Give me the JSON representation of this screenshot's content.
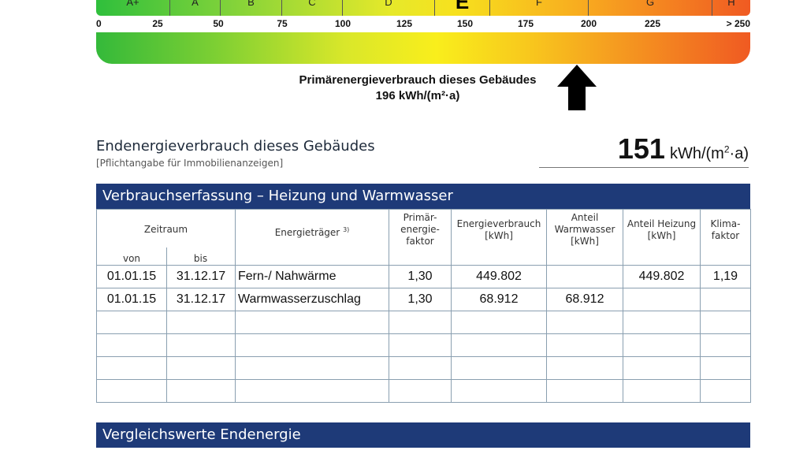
{
  "scale": {
    "classes": [
      "A+",
      "A",
      "B",
      "C",
      "D",
      "E",
      "F",
      "G",
      "H"
    ],
    "ticks": [
      "0",
      "25",
      "50",
      "75",
      "100",
      "125",
      "150",
      "175",
      "200",
      "225",
      "> 250"
    ],
    "highlighted_class": "E",
    "primary_value": 196
  },
  "primary": {
    "label": "Primärenergieverbrauch dieses Gebäudes",
    "value": "196 kWh/(m²·a)"
  },
  "end_energy": {
    "title": "Endenergieverbrauch dieses Gebäudes",
    "subtitle": "[Pflichtangabe für Immobilienanzeigen]",
    "value": "151",
    "unit": "kWh/(m",
    "unit_sup": "2",
    "unit_tail": "·a)"
  },
  "consumption": {
    "header": "Verbrauchserfassung – Heizung und Warmwasser",
    "columns": {
      "zeitraum": "Zeitraum",
      "von": "von",
      "bis": "bis",
      "traeger": "Energieträger",
      "traeger_sup": "3)",
      "faktor": "Primär-\nenergie-\nfaktor",
      "verbrauch": "Energieverbrauch\n[kWh]",
      "warmwasser": "Anteil\nWarmwasser\n[kWh]",
      "heizung": "Anteil Heizung\n[kWh]",
      "klima": "Klima-\nfaktor"
    },
    "rows": [
      {
        "von": "01.01.15",
        "bis": "31.12.17",
        "traeger": "Fern-/ Nahwärme",
        "faktor": "1,30",
        "verbrauch": "449.802",
        "warmwasser": "",
        "heizung": "449.802",
        "klima": "1,19"
      },
      {
        "von": "01.01.15",
        "bis": "31.12.17",
        "traeger": "Warmwasserzuschlag",
        "faktor": "1,30",
        "verbrauch": "68.912",
        "warmwasser": "68.912",
        "heizung": "",
        "klima": ""
      },
      {
        "von": "",
        "bis": "",
        "traeger": "",
        "faktor": "",
        "verbrauch": "",
        "warmwasser": "",
        "heizung": "",
        "klima": ""
      },
      {
        "von": "",
        "bis": "",
        "traeger": "",
        "faktor": "",
        "verbrauch": "",
        "warmwasser": "",
        "heizung": "",
        "klima": ""
      },
      {
        "von": "",
        "bis": "",
        "traeger": "",
        "faktor": "",
        "verbrauch": "",
        "warmwasser": "",
        "heizung": "",
        "klima": ""
      },
      {
        "von": "",
        "bis": "",
        "traeger": "",
        "faktor": "",
        "verbrauch": "",
        "warmwasser": "",
        "heizung": "",
        "klima": ""
      }
    ]
  },
  "comparison": {
    "header": "Vergleichswerte Endenergie"
  },
  "colors": {
    "header_blue": "#1e3a78",
    "arrow": "#000000"
  },
  "icons": {
    "pointer": "up-arrow-icon"
  }
}
